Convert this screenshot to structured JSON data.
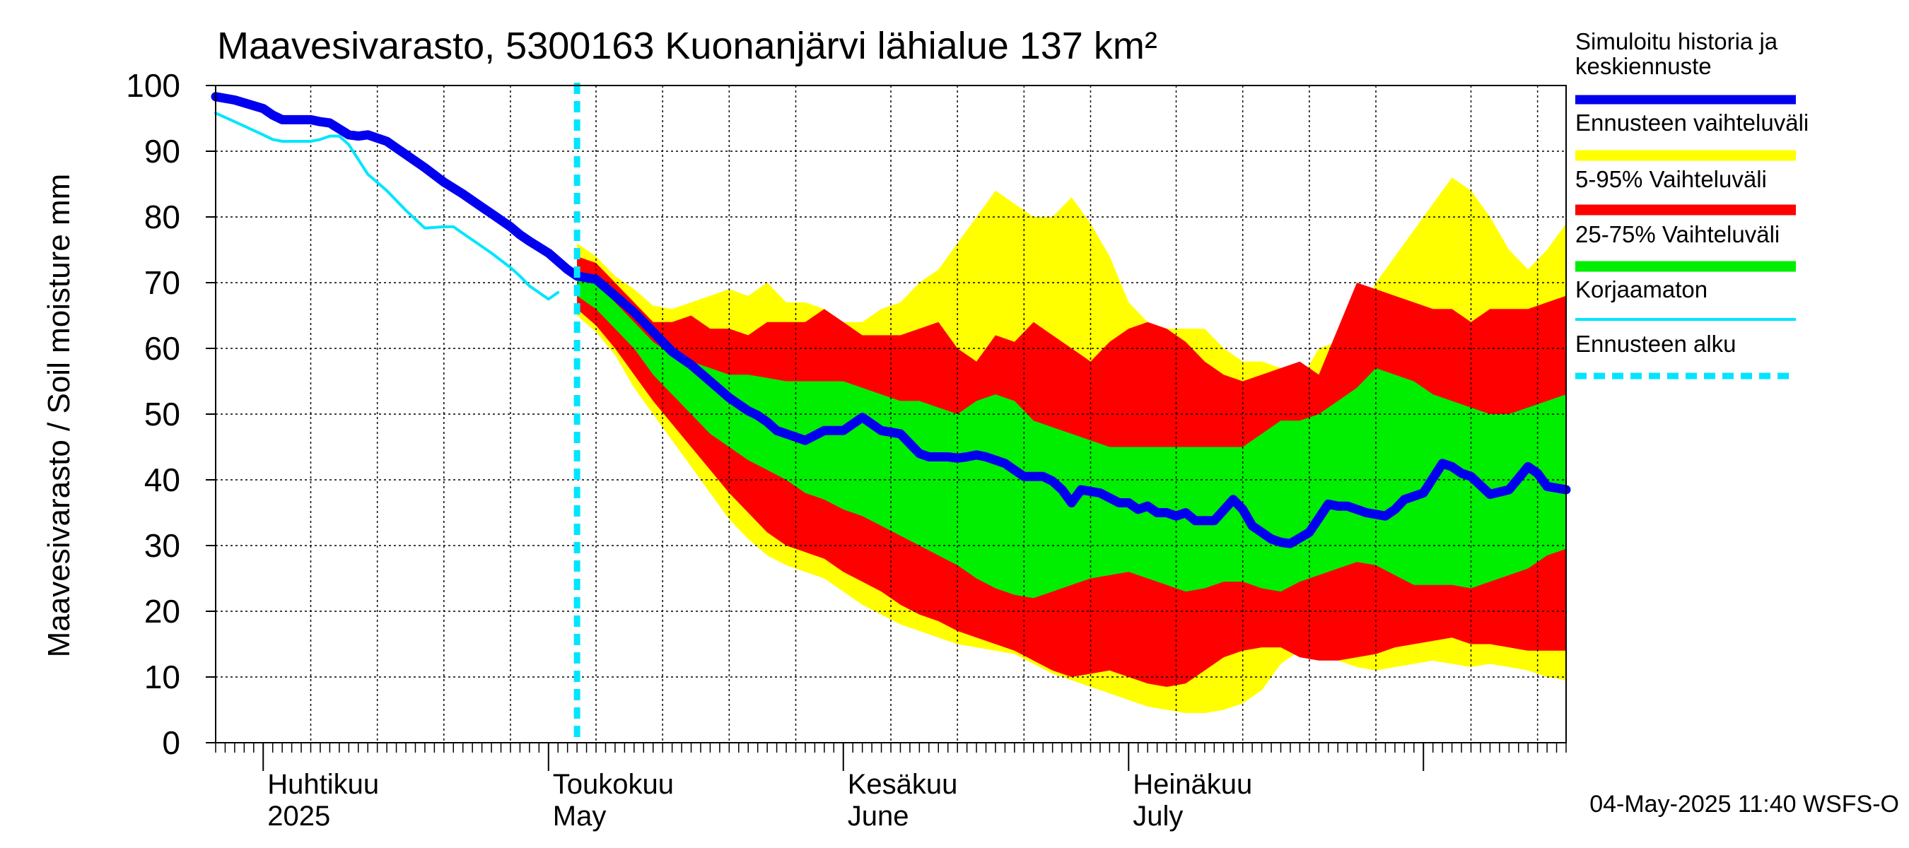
{
  "chart_data": {
    "type": "area",
    "title": "Maavesivarasto, 5300163 Kuonanjärvi lähialue 137 km²",
    "ylabel": "Maavesivarasto / Soil moisture   mm",
    "footer": "04-May-2025 11:40 WSFS-O",
    "ylim": [
      0,
      100
    ],
    "y_ticks": [
      "0",
      "10",
      "20",
      "30",
      "40",
      "50",
      "60",
      "70",
      "80",
      "90",
      "100"
    ],
    "x_range": [
      "2025-03-27",
      "2025-08-16"
    ],
    "forecast_start": "2025-05-04",
    "grid": true,
    "legend_position": "right",
    "month_labels": [
      {
        "date": "2025-04-01",
        "fi": "Huhtikuu",
        "en": "2025"
      },
      {
        "date": "2025-05-01",
        "fi": "Toukokuu",
        "en": "May"
      },
      {
        "date": "2025-06-01",
        "fi": "Kesäkuu",
        "en": "June"
      },
      {
        "date": "2025-07-01",
        "fi": "Heinäkuu",
        "en": "July"
      }
    ],
    "legend": [
      {
        "label": "Simuloitu historia ja keskiennuste",
        "color": "#0000ee",
        "style": "thick"
      },
      {
        "label": "Ennusteen vaihteluväli",
        "color": "#ffff00",
        "style": "band"
      },
      {
        "label": "5-95% Vaihteluväli",
        "color": "#ff0000",
        "style": "band"
      },
      {
        "label": "25-75% Vaihteluväli",
        "color": "#00ee00",
        "style": "band"
      },
      {
        "label": "Korjaamaton",
        "color": "#00e5ff",
        "style": "thin"
      },
      {
        "label": "Ennusteen alku",
        "color": "#00e5ff",
        "style": "dashed"
      }
    ],
    "series": [
      {
        "name": "Simuloitu historia ja keskiennuste",
        "x": [
          "2025-03-27",
          "2025-03-29",
          "2025-04-01",
          "2025-04-02",
          "2025-04-03",
          "2025-04-04",
          "2025-04-06",
          "2025-04-07",
          "2025-04-08",
          "2025-04-10",
          "2025-04-11",
          "2025-04-12",
          "2025-04-14",
          "2025-04-15",
          "2025-04-16",
          "2025-04-18",
          "2025-04-20",
          "2025-04-22",
          "2025-04-24",
          "2025-04-25",
          "2025-04-27",
          "2025-04-28",
          "2025-04-29",
          "2025-05-01",
          "2025-05-03",
          "2025-05-04",
          "2025-05-06",
          "2025-05-08",
          "2025-05-10",
          "2025-05-12",
          "2025-05-14",
          "2025-05-16",
          "2025-05-18",
          "2025-05-20",
          "2025-05-22",
          "2025-05-23",
          "2025-05-24",
          "2025-05-25",
          "2025-05-26",
          "2025-05-28",
          "2025-05-30",
          "2025-06-01",
          "2025-06-03",
          "2025-06-05",
          "2025-06-07",
          "2025-06-09",
          "2025-06-10",
          "2025-06-11",
          "2025-06-12",
          "2025-06-13",
          "2025-06-14",
          "2025-06-15",
          "2025-06-16",
          "2025-06-17",
          "2025-06-18",
          "2025-06-20",
          "2025-06-22",
          "2025-06-23",
          "2025-06-24",
          "2025-06-25",
          "2025-06-26",
          "2025-06-28",
          "2025-06-30",
          "2025-07-01",
          "2025-07-02",
          "2025-07-03",
          "2025-07-04",
          "2025-07-05",
          "2025-07-06",
          "2025-07-07",
          "2025-07-08",
          "2025-07-10",
          "2025-07-12",
          "2025-07-13",
          "2025-07-14",
          "2025-07-15",
          "2025-07-16",
          "2025-07-17",
          "2025-07-18",
          "2025-07-20",
          "2025-07-22",
          "2025-07-23",
          "2025-07-24",
          "2025-07-26",
          "2025-07-28",
          "2025-07-29",
          "2025-07-30",
          "2025-08-01",
          "2025-08-03",
          "2025-08-04",
          "2025-08-05",
          "2025-08-06",
          "2025-08-08",
          "2025-08-10",
          "2025-08-12",
          "2025-08-13",
          "2025-08-14",
          "2025-08-16"
        ],
        "y": [
          98.3,
          97.8,
          96.5,
          95.5,
          94.8,
          94.8,
          94.8,
          94.5,
          94.3,
          92.5,
          92.3,
          92.5,
          91.5,
          90.5,
          89.5,
          87.5,
          85.3,
          83.5,
          81.5,
          80.5,
          78.5,
          77.3,
          76.3,
          74.5,
          72,
          71,
          70.5,
          68,
          65.5,
          62.5,
          59.5,
          57.5,
          55,
          52.5,
          50.5,
          49.8,
          48.8,
          47.5,
          47,
          46,
          47.5,
          47.5,
          49.5,
          47.5,
          47,
          44,
          43.5,
          43.5,
          43.5,
          43.3,
          43.5,
          43.8,
          43.5,
          43,
          42.5,
          40.5,
          40.5,
          39.8,
          38.5,
          36.5,
          38.5,
          38,
          36.5,
          36.5,
          35.5,
          36,
          35,
          35,
          34.5,
          35,
          33.8,
          33.8,
          37,
          35.5,
          33,
          32,
          31,
          30.5,
          30.3,
          32,
          36.3,
          36,
          36,
          35,
          34.5,
          35.5,
          37,
          38,
          42.5,
          42,
          41,
          40.5,
          37.8,
          38.5,
          42,
          41,
          39,
          38.5
        ]
      },
      {
        "name": "Korjaamaton",
        "x": [
          "2025-03-27",
          "2025-03-29",
          "2025-04-01",
          "2025-04-02",
          "2025-04-03",
          "2025-04-05",
          "2025-04-06",
          "2025-04-07",
          "2025-04-08",
          "2025-04-09",
          "2025-04-10",
          "2025-04-12",
          "2025-04-14",
          "2025-04-16",
          "2025-04-18",
          "2025-04-20",
          "2025-04-21",
          "2025-04-22",
          "2025-04-23",
          "2025-04-25",
          "2025-04-27",
          "2025-04-28",
          "2025-04-29",
          "2025-05-01",
          "2025-05-02"
        ],
        "y": [
          95.8,
          94.5,
          92.5,
          91.8,
          91.5,
          91.5,
          91.5,
          91.8,
          92.3,
          92.3,
          91,
          86.5,
          84,
          81,
          78.3,
          78.5,
          78.5,
          77.5,
          76.5,
          74.5,
          72.3,
          71,
          69.5,
          67.5,
          68.5
        ]
      }
    ],
    "bands": [
      {
        "name": "Ennusteen vaihteluväli",
        "x": [
          "2025-05-04",
          "2025-05-06",
          "2025-05-08",
          "2025-05-10",
          "2025-05-12",
          "2025-05-14",
          "2025-05-16",
          "2025-05-18",
          "2025-05-20",
          "2025-05-22",
          "2025-05-24",
          "2025-05-26",
          "2025-05-28",
          "2025-05-30",
          "2025-06-01",
          "2025-06-03",
          "2025-06-05",
          "2025-06-07",
          "2025-06-09",
          "2025-06-11",
          "2025-06-13",
          "2025-06-15",
          "2025-06-17",
          "2025-06-19",
          "2025-06-21",
          "2025-06-23",
          "2025-06-25",
          "2025-06-27",
          "2025-06-29",
          "2025-07-01",
          "2025-07-03",
          "2025-07-05",
          "2025-07-07",
          "2025-07-09",
          "2025-07-11",
          "2025-07-13",
          "2025-07-15",
          "2025-07-17",
          "2025-07-19",
          "2025-07-21",
          "2025-07-23",
          "2025-07-25",
          "2025-07-27",
          "2025-07-29",
          "2025-07-31",
          "2025-08-02",
          "2025-08-04",
          "2025-08-06",
          "2025-08-08",
          "2025-08-10",
          "2025-08-12",
          "2025-08-14",
          "2025-08-16"
        ],
        "low": [
          65,
          62.5,
          59,
          54,
          50,
          46,
          42,
          38,
          34,
          31,
          28.5,
          27,
          26,
          25,
          23,
          21,
          19.5,
          18,
          17,
          16,
          15,
          14.5,
          14,
          13.5,
          12,
          10.5,
          9.5,
          8.5,
          7.5,
          6.5,
          5.5,
          5,
          4.5,
          4.5,
          5,
          6,
          8,
          12,
          14,
          13,
          12.5,
          11.5,
          11,
          11.5,
          12,
          12.5,
          12,
          11.5,
          12,
          11.5,
          11,
          10,
          9.5
        ],
        "high": [
          76,
          74,
          71,
          69,
          66.5,
          66,
          67,
          68,
          69,
          68,
          70,
          67,
          67,
          66,
          64,
          64,
          66,
          67,
          70,
          72,
          76,
          80,
          84,
          82,
          80,
          80,
          83,
          79,
          74,
          67,
          64,
          63,
          63,
          63,
          60,
          58,
          58,
          57,
          55,
          60,
          61,
          64,
          70,
          74,
          78,
          82,
          86,
          84,
          80,
          75,
          72,
          75,
          79
        ]
      },
      {
        "name": "5-95% Vaihteluväli",
        "x": [
          "2025-05-04",
          "2025-05-06",
          "2025-05-08",
          "2025-05-10",
          "2025-05-12",
          "2025-05-14",
          "2025-05-16",
          "2025-05-18",
          "2025-05-20",
          "2025-05-22",
          "2025-05-24",
          "2025-05-26",
          "2025-05-28",
          "2025-05-30",
          "2025-06-01",
          "2025-06-03",
          "2025-06-05",
          "2025-06-07",
          "2025-06-09",
          "2025-06-11",
          "2025-06-13",
          "2025-06-15",
          "2025-06-17",
          "2025-06-19",
          "2025-06-21",
          "2025-06-23",
          "2025-06-25",
          "2025-06-27",
          "2025-06-29",
          "2025-07-01",
          "2025-07-03",
          "2025-07-05",
          "2025-07-07",
          "2025-07-09",
          "2025-07-11",
          "2025-07-13",
          "2025-07-15",
          "2025-07-17",
          "2025-07-19",
          "2025-07-21",
          "2025-07-23",
          "2025-07-25",
          "2025-07-27",
          "2025-07-29",
          "2025-07-31",
          "2025-08-02",
          "2025-08-04",
          "2025-08-06",
          "2025-08-08",
          "2025-08-10",
          "2025-08-12",
          "2025-08-14",
          "2025-08-16"
        ],
        "low": [
          66,
          63.5,
          60,
          56,
          52,
          48.5,
          45,
          41.5,
          38,
          35,
          32,
          30,
          29,
          28,
          26,
          24.5,
          23,
          21,
          19.5,
          18.5,
          17,
          16,
          15,
          14,
          12.5,
          11,
          10,
          10.5,
          11,
          10,
          9,
          8.5,
          9,
          11,
          13,
          14,
          14.5,
          14.5,
          13,
          12.5,
          12.5,
          13,
          13.5,
          14.5,
          15,
          15.5,
          16,
          15,
          15,
          14.5,
          14,
          14,
          14
        ],
        "high": [
          74,
          73,
          70,
          67,
          64,
          64,
          65,
          63,
          63,
          62,
          64,
          64,
          64,
          66,
          64,
          62,
          62,
          62,
          63,
          64,
          60,
          58,
          62,
          61,
          64,
          62,
          60,
          58,
          61,
          63,
          64,
          63,
          61,
          58,
          56,
          55,
          56,
          57,
          58,
          56,
          63,
          70,
          69,
          68,
          67,
          66,
          66,
          64,
          66,
          66,
          66,
          67,
          68
        ]
      },
      {
        "name": "25-75% Vaihteluväli",
        "x": [
          "2025-05-04",
          "2025-05-06",
          "2025-05-08",
          "2025-05-10",
          "2025-05-12",
          "2025-05-14",
          "2025-05-16",
          "2025-05-18",
          "2025-05-20",
          "2025-05-22",
          "2025-05-24",
          "2025-05-26",
          "2025-05-28",
          "2025-05-30",
          "2025-06-01",
          "2025-06-03",
          "2025-06-05",
          "2025-06-07",
          "2025-06-09",
          "2025-06-11",
          "2025-06-13",
          "2025-06-15",
          "2025-06-17",
          "2025-06-19",
          "2025-06-21",
          "2025-06-23",
          "2025-06-25",
          "2025-06-27",
          "2025-06-29",
          "2025-07-01",
          "2025-07-03",
          "2025-07-05",
          "2025-07-07",
          "2025-07-09",
          "2025-07-11",
          "2025-07-13",
          "2025-07-15",
          "2025-07-17",
          "2025-07-19",
          "2025-07-21",
          "2025-07-23",
          "2025-07-25",
          "2025-07-27",
          "2025-07-29",
          "2025-07-31",
          "2025-08-02",
          "2025-08-04",
          "2025-08-06",
          "2025-08-08",
          "2025-08-10",
          "2025-08-12",
          "2025-08-14",
          "2025-08-16"
        ],
        "low": [
          68,
          66,
          63,
          60,
          56,
          53,
          50,
          47,
          45,
          43,
          41.5,
          40,
          38,
          37,
          35.5,
          34.5,
          33,
          31.5,
          30,
          28.5,
          27,
          25,
          23.5,
          22.5,
          22,
          23,
          24,
          25,
          25.5,
          26,
          25,
          24,
          23,
          23.5,
          24.5,
          24.5,
          23.5,
          23,
          24.5,
          25.5,
          26.5,
          27.5,
          27,
          25.5,
          24,
          24,
          24,
          23.5,
          24.5,
          25.5,
          26.5,
          28.5,
          29.5
        ],
        "high": [
          71,
          70,
          67,
          64,
          61,
          59,
          58,
          57,
          56,
          56,
          55.5,
          55,
          55,
          55,
          55,
          54,
          53,
          52,
          52,
          51,
          50,
          52,
          53,
          52,
          49,
          48,
          47,
          46,
          45,
          45,
          45,
          45,
          45,
          45,
          45,
          45,
          47,
          49,
          49,
          50,
          52,
          54,
          57,
          56,
          55,
          53,
          52,
          51,
          50,
          50,
          51,
          52,
          53
        ]
      }
    ]
  }
}
